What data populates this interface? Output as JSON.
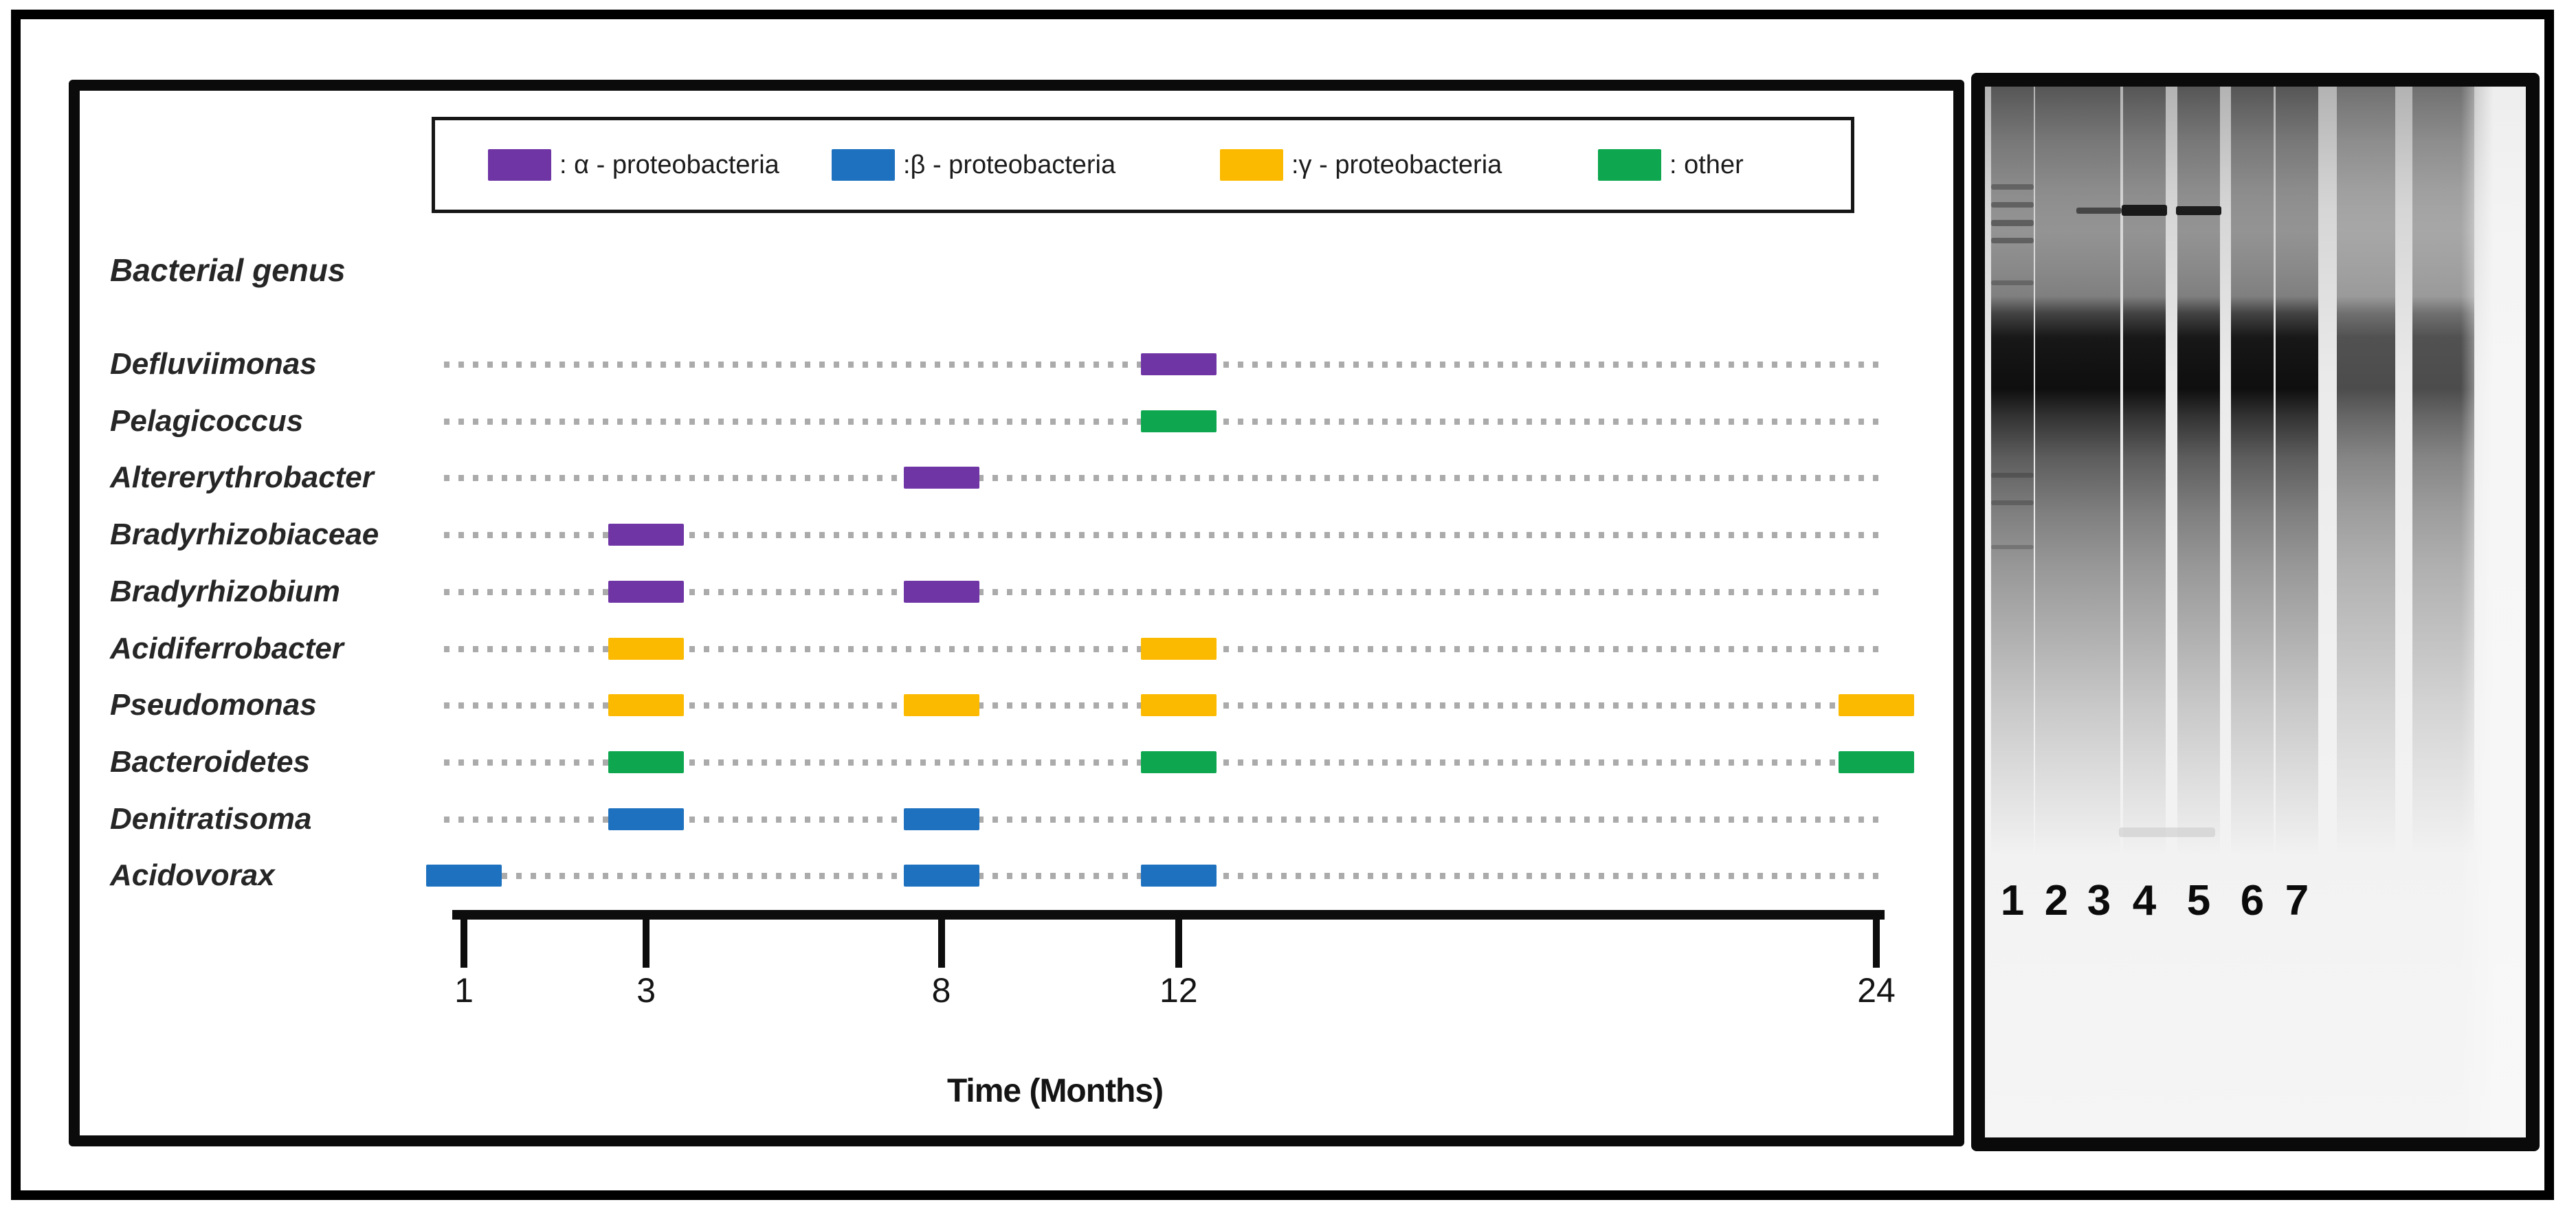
{
  "chart_data": {
    "type": "scatter",
    "title": "",
    "ylabel_header": "Bacterial genus",
    "xlabel": "Time (Months)",
    "x_ticks": [
      "1",
      "3",
      "8",
      "12",
      "24"
    ],
    "x_tick_pct": {
      "1": 0,
      "3": 12.9,
      "8": 33.8,
      "12": 50.6,
      "24": 100
    },
    "xlim": [
      1,
      24
    ],
    "grid": "dotted-row-leaders",
    "legend_position": "top",
    "legend": [
      {
        "key": "alpha",
        "label": ": α - proteobacteria",
        "color": "#6F35A5"
      },
      {
        "key": "beta",
        "label": ":β - proteobacteria",
        "color": "#1E71BF"
      },
      {
        "key": "gamma",
        "label": ":γ - proteobacteria",
        "color": "#FBBA00"
      },
      {
        "key": "other",
        "label": ": other",
        "color": "#0EA750"
      }
    ],
    "rows": [
      {
        "genus": "Defluviimonas",
        "group": "alpha",
        "months": [
          12
        ]
      },
      {
        "genus": "Pelagicoccus",
        "group": "other",
        "months": [
          12
        ]
      },
      {
        "genus": "Altererythrobacter",
        "group": "alpha",
        "months": [
          8
        ]
      },
      {
        "genus": "Bradyrhizobiaceae",
        "group": "alpha",
        "months": [
          3
        ]
      },
      {
        "genus": "Bradyrhizobium",
        "group": "alpha",
        "months": [
          3,
          8
        ]
      },
      {
        "genus": "Acidiferrobacter",
        "group": "gamma",
        "months": [
          3,
          12
        ]
      },
      {
        "genus": "Pseudomonas",
        "group": "gamma",
        "months": [
          3,
          8,
          12,
          24
        ]
      },
      {
        "genus": "Bacteroidetes",
        "group": "other",
        "months": [
          3,
          12,
          24
        ]
      },
      {
        "genus": "Denitratisoma",
        "group": "beta",
        "months": [
          3,
          8
        ]
      },
      {
        "genus": "Acidovorax",
        "group": "beta",
        "months": [
          1,
          8,
          12
        ]
      }
    ]
  },
  "gel_panel": {
    "lane_labels": [
      "1",
      "2",
      "3",
      "4",
      "5",
      "6",
      "7"
    ],
    "sharp_band_lanes": [
      "3",
      "4",
      "5"
    ]
  }
}
